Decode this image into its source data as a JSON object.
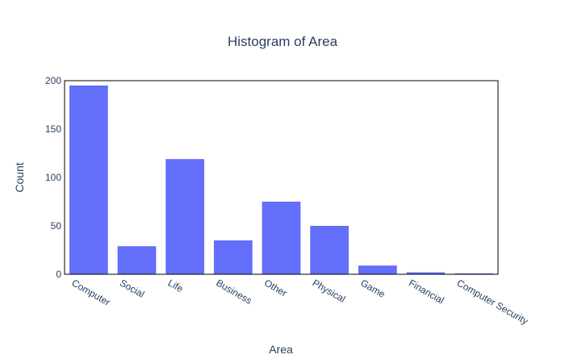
{
  "chart_data": {
    "type": "bar",
    "title": "Histogram of Area",
    "xlabel": "Area",
    "ylabel": "Count",
    "categories": [
      "Computer",
      "Social",
      "Life",
      "Business",
      "Other",
      "Physical",
      "Game",
      "Financial",
      "Computer Security"
    ],
    "values": [
      195,
      29,
      119,
      35,
      75,
      50,
      9,
      2,
      1
    ],
    "ylim": [
      0,
      200
    ],
    "yticks": [
      0,
      50,
      100,
      150,
      200
    ],
    "grid": false,
    "bar_color": "#636efa",
    "axis_color": "#000000",
    "text_color": "#2a3f5f"
  }
}
